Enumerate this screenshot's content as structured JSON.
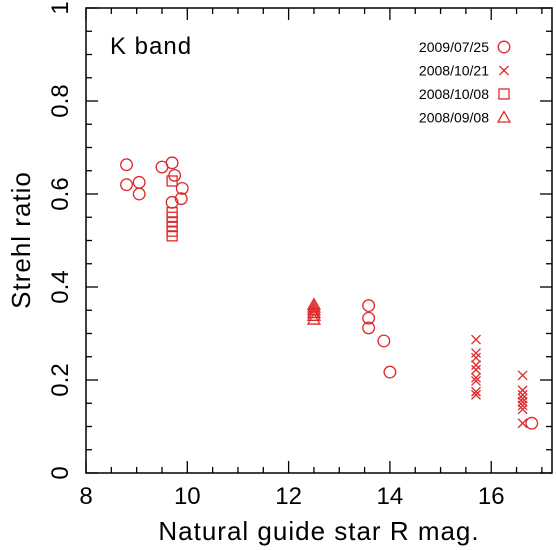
{
  "chart_data": {
    "type": "scatter",
    "title": "",
    "annotation": "K band",
    "xlabel": "Natural guide star R mag.",
    "ylabel": "Strehl ratio",
    "xlim": [
      8,
      17.2
    ],
    "ylim": [
      0,
      1
    ],
    "xticks": [
      8,
      10,
      12,
      14,
      16
    ],
    "yticks": [
      0,
      0.2,
      0.4,
      0.6,
      0.8,
      1
    ],
    "xtick_labels": [
      "8",
      "10",
      "12",
      "14",
      "16"
    ],
    "ytick_labels": [
      "0",
      "0.2",
      "0.4",
      "0.6",
      "0.8",
      "1"
    ],
    "grid": false,
    "legend_position": "top-right",
    "color": "#e0282a",
    "series": [
      {
        "name": "2009/07/25",
        "marker": "circle",
        "points": [
          [
            8.8,
            0.663
          ],
          [
            8.8,
            0.62
          ],
          [
            9.05,
            0.625
          ],
          [
            9.05,
            0.6
          ],
          [
            9.5,
            0.658
          ],
          [
            9.7,
            0.667
          ],
          [
            9.75,
            0.64
          ],
          [
            9.7,
            0.582
          ],
          [
            9.9,
            0.612
          ],
          [
            9.88,
            0.59
          ],
          [
            13.58,
            0.36
          ],
          [
            13.58,
            0.333
          ],
          [
            13.58,
            0.312
          ],
          [
            13.88,
            0.284
          ],
          [
            14.0,
            0.217
          ],
          [
            16.8,
            0.107
          ]
        ]
      },
      {
        "name": "2008/10/21",
        "marker": "x",
        "points": [
          [
            15.7,
            0.287
          ],
          [
            15.7,
            0.258
          ],
          [
            15.7,
            0.248
          ],
          [
            15.7,
            0.232
          ],
          [
            15.7,
            0.222
          ],
          [
            15.7,
            0.205
          ],
          [
            15.7,
            0.198
          ],
          [
            15.7,
            0.175
          ],
          [
            15.7,
            0.168
          ],
          [
            16.62,
            0.21
          ],
          [
            16.62,
            0.178
          ],
          [
            16.62,
            0.168
          ],
          [
            16.62,
            0.16
          ],
          [
            16.62,
            0.153
          ],
          [
            16.62,
            0.145
          ],
          [
            16.62,
            0.137
          ],
          [
            16.62,
            0.107
          ]
        ]
      },
      {
        "name": "2008/10/08",
        "marker": "square",
        "points": [
          [
            9.7,
            0.628
          ],
          [
            9.7,
            0.56
          ],
          [
            9.7,
            0.55
          ],
          [
            9.7,
            0.54
          ],
          [
            9.7,
            0.53
          ],
          [
            9.7,
            0.52
          ],
          [
            9.7,
            0.51
          ]
        ]
      },
      {
        "name": "2008/09/08",
        "marker": "triangle",
        "points": [
          [
            12.5,
            0.362
          ],
          [
            12.5,
            0.356
          ],
          [
            12.5,
            0.35
          ],
          [
            12.5,
            0.344
          ],
          [
            12.5,
            0.338
          ],
          [
            12.5,
            0.33
          ]
        ]
      }
    ]
  }
}
